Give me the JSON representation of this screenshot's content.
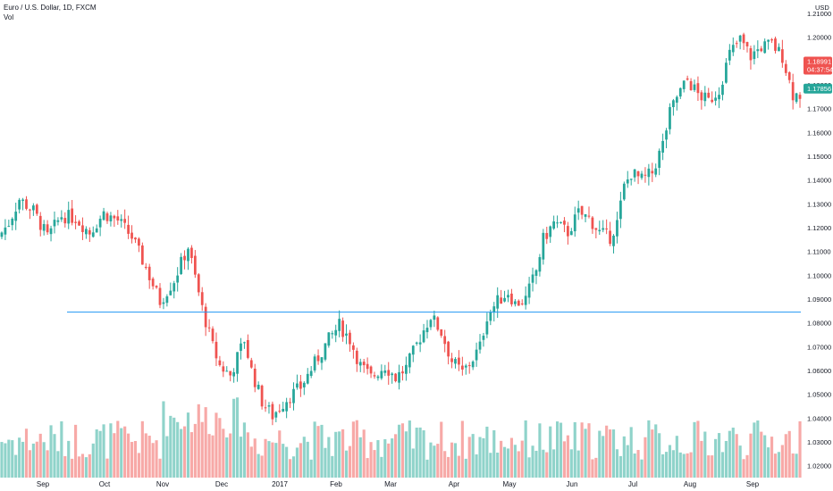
{
  "legend": {
    "symbol": "Euro / U.S. Dollar, 1D, FXCM",
    "volume": "Vol"
  },
  "colors": {
    "up": "#26a69a",
    "down": "#ef5350",
    "vol_up": "#8fd3ca",
    "vol_down": "#f7a9a7",
    "support_line": "#2196f3",
    "last_price_bg": "#ef5350",
    "prev_price_bg": "#26a69a"
  },
  "chart_data": {
    "type": "line",
    "title": "Euro / U.S. Dollar, 1D, FXCM",
    "ylabel": "USD",
    "ylim": [
      1.015,
      1.2156
    ],
    "y_ticks": [
      "1.21000",
      "1.20000",
      "1.19000",
      "1.18000",
      "1.17000",
      "1.16000",
      "1.15000",
      "1.14000",
      "1.13000",
      "1.12000",
      "1.11000",
      "1.10000",
      "1.09000",
      "1.08000",
      "1.07000",
      "1.06000",
      "1.05000",
      "1.04000",
      "1.03000",
      "1.02000"
    ],
    "x_ticks": [
      "Sep",
      "Oct",
      "Nov",
      "Dec",
      "2017",
      "Feb",
      "Mar",
      "Apr",
      "May",
      "Jun",
      "Jul",
      "Aug",
      "Sep"
    ],
    "price_path": [
      [
        0,
        1.116
      ],
      [
        3,
        1.122
      ],
      [
        6,
        1.132
      ],
      [
        10,
        1.127
      ],
      [
        14,
        1.116
      ],
      [
        18,
        1.125
      ],
      [
        22,
        1.124
      ],
      [
        26,
        1.118
      ],
      [
        30,
        1.126
      ],
      [
        34,
        1.123
      ],
      [
        38,
        1.116
      ],
      [
        42,
        1.103
      ],
      [
        46,
        1.089
      ],
      [
        50,
        1.098
      ],
      [
        54,
        1.112
      ],
      [
        56,
        1.099
      ],
      [
        58,
        1.086
      ],
      [
        61,
        1.07
      ],
      [
        63,
        1.062
      ],
      [
        66,
        1.058
      ],
      [
        70,
        1.073
      ],
      [
        72,
        1.06
      ],
      [
        75,
        1.047
      ],
      [
        78,
        1.041
      ],
      [
        82,
        1.048
      ],
      [
        86,
        1.053
      ],
      [
        90,
        1.063
      ],
      [
        94,
        1.073
      ],
      [
        97,
        1.079
      ],
      [
        100,
        1.073
      ],
      [
        103,
        1.062
      ],
      [
        106,
        1.057
      ],
      [
        110,
        1.062
      ],
      [
        113,
        1.057
      ],
      [
        116,
        1.061
      ],
      [
        120,
        1.074
      ],
      [
        123,
        1.083
      ],
      [
        126,
        1.076
      ],
      [
        129,
        1.064
      ],
      [
        132,
        1.059
      ],
      [
        135,
        1.065
      ],
      [
        137,
        1.07
      ],
      [
        139,
        1.083
      ],
      [
        142,
        1.089
      ],
      [
        145,
        1.093
      ],
      [
        147,
        1.088
      ],
      [
        150,
        1.09
      ],
      [
        153,
        1.102
      ],
      [
        155,
        1.115
      ],
      [
        158,
        1.122
      ],
      [
        162,
        1.118
      ],
      [
        165,
        1.126
      ],
      [
        168,
        1.124
      ],
      [
        171,
        1.118
      ],
      [
        174,
        1.116
      ],
      [
        176,
        1.122
      ],
      [
        178,
        1.137
      ],
      [
        180,
        1.143
      ],
      [
        183,
        1.14
      ],
      [
        186,
        1.143
      ],
      [
        189,
        1.155
      ],
      [
        191,
        1.168
      ],
      [
        193,
        1.175
      ],
      [
        196,
        1.182
      ],
      [
        199,
        1.176
      ],
      [
        202,
        1.173
      ],
      [
        205,
        1.178
      ],
      [
        208,
        1.193
      ],
      [
        211,
        1.199
      ],
      [
        214,
        1.192
      ],
      [
        217,
        1.196
      ],
      [
        220,
        1.197
      ],
      [
        223,
        1.192
      ],
      [
        226,
        1.176
      ]
    ],
    "support_level": 1.0845,
    "last_price": "1.18991",
    "countdown": "04:37:54",
    "prev_close": "1.17856",
    "series": [
      {
        "name": "Vol",
        "type": "bar"
      }
    ],
    "grid": false,
    "legend": "top-left"
  }
}
